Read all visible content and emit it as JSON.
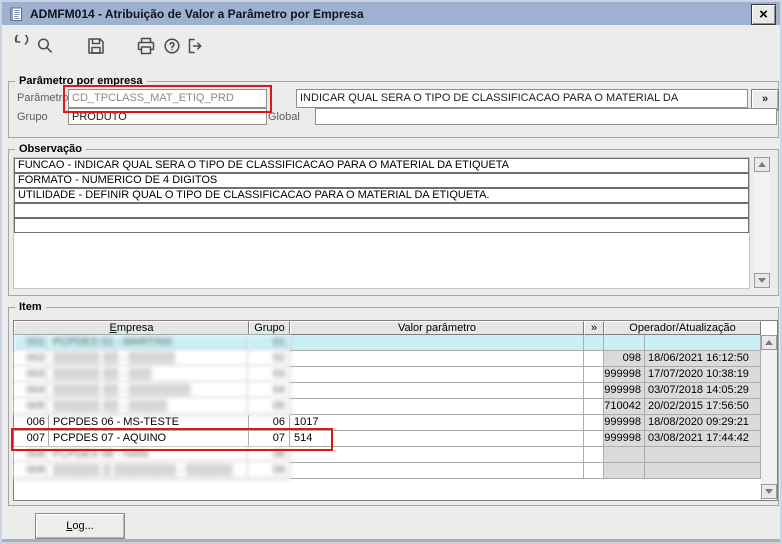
{
  "window": {
    "title": "ADMFM014 - Atribuição de Valor a Parâmetro por Empresa",
    "close_glyph": "×"
  },
  "toolbar": {
    "icons": [
      "undo-icon",
      "search-icon",
      "save-icon",
      "print-icon",
      "help-icon",
      "exit-icon"
    ]
  },
  "param_group": {
    "title": "Parâmetro por empresa",
    "param_label": "Parâmetro",
    "param_value": "CD_TPCLASS_MAT_ETIQ_PRD",
    "param_desc": "INDICAR QUAL SERA O TIPO DE CLASSIFICACAO PARA O MATERIAL DA",
    "expand_label": "»",
    "grupo_label": "Grupo",
    "grupo_value": "PRODUTO",
    "global_label": "Global",
    "global_value": ""
  },
  "obs_group": {
    "title": "Observação",
    "lines": [
      "FUNCAO - INDICAR QUAL SERA O TIPO DE CLASSIFICACAO PARA O MATERIAL DA ETIQUETA",
      "FORMATO - NUMERICO DE 4 DIGITOS",
      "UTILIDADE - DEFINIR QUAL O TIPO DE CLASSIFICACAO PARA O MATERIAL DA ETIQUETA.",
      "",
      ""
    ]
  },
  "item_group": {
    "title": "Item",
    "columns": {
      "empresa": "Empresa",
      "grupo": "Grupo",
      "valor": "Valor parâmetro",
      "chevron": "»",
      "operador": "Operador/Atualização"
    },
    "rows": [
      {
        "num": "001",
        "empresa": "PCPDES 01 - MARTINS",
        "grupo": "01",
        "valor": "",
        "opnum": "",
        "optime": "",
        "selected": true,
        "redacted": true
      },
      {
        "num": "002",
        "empresa": "▒▒▒▒▒▒ ▒▒ - ▒▒▒▒▒▒",
        "grupo": "02",
        "valor": "",
        "opnum": "098",
        "optime": "18/06/2021 16:12:50",
        "redacted": true
      },
      {
        "num": "003",
        "empresa": "▒▒▒▒▒▒ ▒▒ - ▒▒▒",
        "grupo": "03",
        "valor": "",
        "opnum": "999998",
        "optime": "17/07/2020 10:38:19",
        "redacted": true
      },
      {
        "num": "004",
        "empresa": "▒▒▒▒▒▒ ▒▒ - ▒▒▒▒▒▒▒▒",
        "grupo": "04",
        "valor": "",
        "opnum": "999998",
        "optime": "03/07/2018 14:05:29",
        "redacted": true
      },
      {
        "num": "005",
        "empresa": "▒▒▒▒▒▒ ▒▒ - ▒▒▒▒▒",
        "grupo": "05",
        "valor": "",
        "opnum": "710042",
        "optime": "20/02/2015 17:56:50",
        "redacted": true
      },
      {
        "num": "006",
        "empresa": "PCPDES 06 - MS-TESTE",
        "grupo": "06",
        "valor": "1017",
        "opnum": "999998",
        "optime": "18/08/2020 09:29:21"
      },
      {
        "num": "007",
        "empresa": "PCPDES 07 - AQUINO",
        "grupo": "07",
        "valor": "514",
        "opnum": "999998",
        "optime": "03/08/2021 17:44:42",
        "highlighted": true
      },
      {
        "num": "008",
        "empresa": "PCPDES 08 - IVAN",
        "grupo": "08",
        "valor": "",
        "opnum": "",
        "optime": "",
        "redacted": true
      },
      {
        "num": "009",
        "empresa": "▒▒▒▒▒▒ ▒ ▒▒▒▒▒▒▒▒ - ▒▒▒▒▒▒",
        "grupo": "09",
        "valor": "",
        "opnum": "",
        "optime": "",
        "redacted": true
      }
    ]
  },
  "footer": {
    "log_label": "Log..."
  },
  "colors": {
    "titlebar": "#9FB1D1",
    "highlight_red": "#E01515",
    "selected_row": "#CBEFF6",
    "operator_cell": "#DBDBDB"
  }
}
